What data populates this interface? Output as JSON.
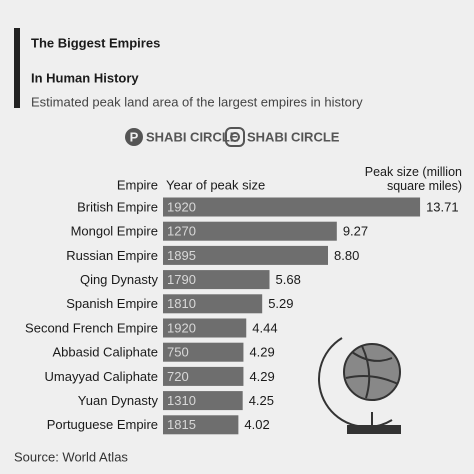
{
  "chart_data": {
    "type": "bar",
    "title": [
      "The Biggest Empires",
      "In Human History"
    ],
    "subtitle": "Estimated peak land area of the largest empires in history",
    "brands": [
      "SHABI CIRCLE",
      "SHABI CIRCLE"
    ],
    "column_headers": [
      "Empire",
      "Year of peak size",
      "Peak size (million square miles)"
    ],
    "categories": [
      "British Empire",
      "Mongol Empire",
      "Russian Empire",
      "Qing Dynasty",
      "Spanish Empire",
      "Second French Empire",
      "Abbasid Caliphate",
      "Umayyad Caliphate",
      "Yuan Dynasty",
      "Portuguese Empire"
    ],
    "years": [
      1920,
      1270,
      1895,
      1790,
      1810,
      1920,
      750,
      720,
      1310,
      1815
    ],
    "values": [
      13.71,
      9.27,
      8.8,
      5.68,
      5.29,
      4.44,
      4.29,
      4.29,
      4.25,
      4.02
    ],
    "value_labels": [
      "13.71",
      "9.27",
      "8.80",
      "5.68",
      "5.29",
      "4.44",
      "4.29",
      "4.29",
      "4.25",
      "4.02"
    ],
    "color": "#6e6e6e",
    "source": "Source: World Atlas"
  }
}
